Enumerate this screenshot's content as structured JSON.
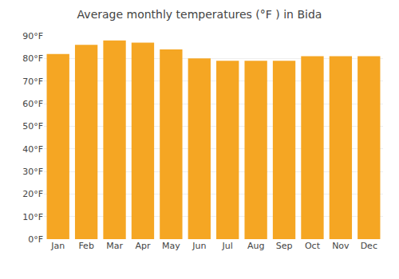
{
  "chart_data": {
    "type": "bar",
    "title": "Average monthly temperatures (°F ) in Bida",
    "categories": [
      "Jan",
      "Feb",
      "Mar",
      "Apr",
      "May",
      "Jun",
      "Jul",
      "Aug",
      "Sep",
      "Oct",
      "Nov",
      "Dec"
    ],
    "values": [
      82,
      86,
      88,
      87,
      84,
      80,
      79,
      79,
      79,
      81,
      81,
      81
    ],
    "color": "#F5A623",
    "ylim": [
      0,
      90
    ],
    "yticks": [
      {
        "value": 0,
        "label": "0°F"
      },
      {
        "value": 10,
        "label": "10°F"
      },
      {
        "value": 20,
        "label": "20°F"
      },
      {
        "value": 30,
        "label": "30°F"
      },
      {
        "value": 40,
        "label": "40°F"
      },
      {
        "value": 50,
        "label": "50°F"
      },
      {
        "value": 60,
        "label": "60°F"
      },
      {
        "value": 70,
        "label": "70°F"
      },
      {
        "value": 80,
        "label": "80°F"
      },
      {
        "value": 90,
        "label": "90°F"
      }
    ],
    "grid": true
  }
}
